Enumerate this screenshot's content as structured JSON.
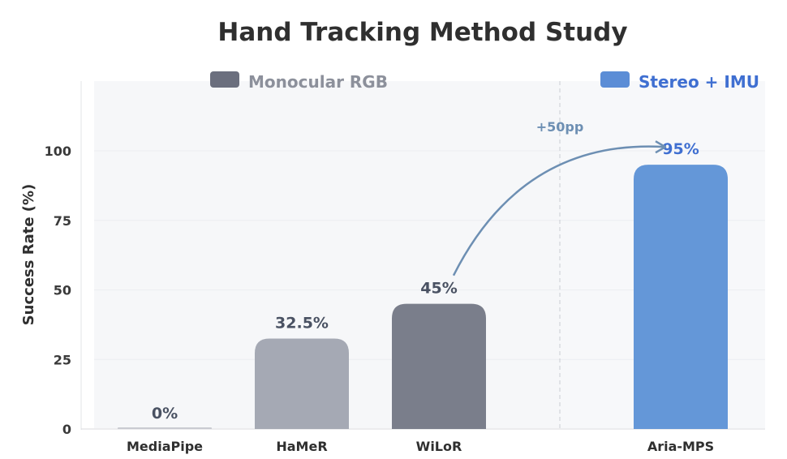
{
  "chart_data": {
    "type": "bar",
    "title": "Hand Tracking Method Study",
    "ylabel": "Success Rate (%)",
    "xlabel": "",
    "ylim": [
      0,
      125
    ],
    "yticks": [
      0,
      25,
      50,
      75,
      100
    ],
    "categories": [
      "MediaPipe",
      "HaMeR",
      "WiLoR",
      "Aria-MPS"
    ],
    "values": [
      0,
      32.5,
      45,
      95
    ],
    "value_labels": [
      "0%",
      "32.5%",
      "45%",
      "95%"
    ],
    "bar_colors": [
      "#c9cbd1",
      "#a5a9b4",
      "#7a7e8b",
      "#6497d8"
    ],
    "groups": [
      {
        "name": "Monocular RGB",
        "color": "#6b6f7e",
        "text_color": "#8c909b",
        "members": [
          "MediaPipe",
          "HaMeR",
          "WiLoR"
        ]
      },
      {
        "name": "Stereo + IMU",
        "color": "#5b8dd6",
        "text_color": "#3f6fd1",
        "members": [
          "Aria-MPS"
        ]
      }
    ],
    "annotation": {
      "text": "+50pp",
      "from": "WiLoR",
      "to": "Aria-MPS",
      "color": "#6d8fb3"
    },
    "value_label_color_highlight": "#3f6fd1",
    "grid": true,
    "legend_position": "top"
  }
}
